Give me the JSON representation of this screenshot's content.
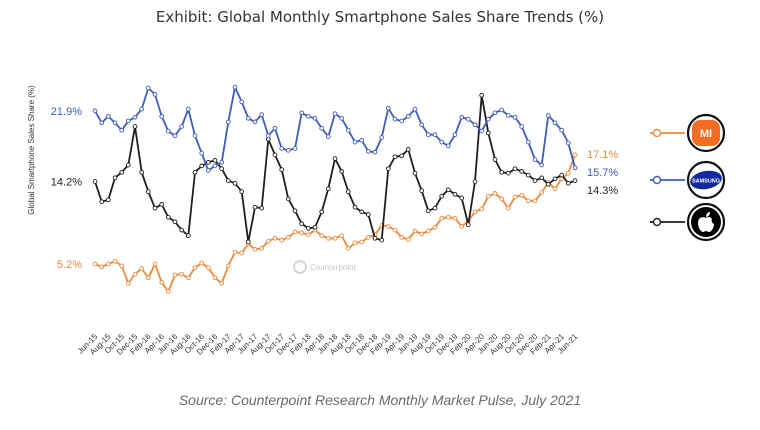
{
  "chart_data": {
    "type": "line",
    "title": "Exhibit: Global Monthly Smartphone Sales Share Trends (%)",
    "ylabel": "Global Smartphone Sales Share (%)",
    "xlabel": "",
    "ylim": [
      -2,
      28
    ],
    "grid": false,
    "x": [
      "Jun-15",
      "Jul-15",
      "Aug-15",
      "Sep-15",
      "Oct-15",
      "Nov-15",
      "Dec-15",
      "Jan-16",
      "Feb-16",
      "Mar-16",
      "Apr-16",
      "May-16",
      "Jun-16",
      "Jul-16",
      "Aug-16",
      "Sep-16",
      "Oct-16",
      "Nov-16",
      "Dec-16",
      "Jan-17",
      "Feb-17",
      "Mar-17",
      "Apr-17",
      "May-17",
      "Jun-17",
      "Jul-17",
      "Aug-17",
      "Sep-17",
      "Oct-17",
      "Nov-17",
      "Dec-17",
      "Jan-18",
      "Feb-18",
      "Mar-18",
      "Apr-18",
      "May-18",
      "Jun-18",
      "Jul-18",
      "Aug-18",
      "Sep-18",
      "Oct-18",
      "Nov-18",
      "Dec-18",
      "Jan-19",
      "Feb-19",
      "Mar-19",
      "Apr-19",
      "May-19",
      "Jun-19",
      "Jul-19",
      "Aug-19",
      "Sep-19",
      "Oct-19",
      "Nov-19",
      "Dec-19",
      "Jan-20",
      "Feb-20",
      "Mar-20",
      "Apr-20",
      "May-20",
      "Jun-20",
      "Jul-20",
      "Aug-20",
      "Sep-20",
      "Oct-20",
      "Nov-20",
      "Dec-20",
      "Jan-21",
      "Feb-21",
      "Mar-21",
      "Apr-21",
      "May-21",
      "Jun-21"
    ],
    "tick_labels": [
      "Jun-15",
      "Aug-15",
      "Oct-15",
      "Dec-15",
      "Feb-16",
      "Apr-16",
      "Jun-16",
      "Aug-16",
      "Oct-16",
      "Dec-16",
      "Feb-17",
      "Apr-17",
      "Jun-17",
      "Aug-17",
      "Oct-17",
      "Dec-17",
      "Feb-18",
      "Apr-18",
      "Jun-18",
      "Aug-18",
      "Oct-18",
      "Dec-18",
      "Feb-19",
      "Apr-19",
      "Jun-19",
      "Aug-19",
      "Oct-19",
      "Dec-19",
      "Feb-20",
      "Apr-20",
      "Jun-20",
      "Aug-20",
      "Oct-20",
      "Dec-20",
      "Feb-21",
      "Apr-21",
      "Jun-21"
    ],
    "series": [
      {
        "key": "samsung",
        "color": "#3f5cb8",
        "end_label": "15.7%",
        "start_label": "21.9%",
        "values": [
          21.9,
          20.6,
          21.3,
          20.6,
          19.8,
          20.8,
          21.2,
          22.1,
          24.4,
          23.7,
          21.3,
          19.7,
          19.2,
          20.2,
          22.1,
          19.2,
          17.3,
          15.4,
          15.9,
          16.3,
          20.7,
          24.5,
          22.9,
          21.1,
          20.7,
          21.5,
          19.2,
          20.0,
          17.8,
          17.6,
          17.8,
          21.7,
          21.3,
          21.1,
          20.0,
          19.1,
          21.6,
          21.1,
          19.8,
          18.5,
          18.7,
          17.5,
          17.4,
          19.0,
          22.2,
          21.0,
          20.8,
          21.3,
          22.1,
          20.4,
          19.3,
          19.3,
          18.5,
          18.1,
          19.3,
          21.2,
          21.0,
          20.4,
          19.7,
          21.0,
          21.7,
          22.0,
          21.4,
          21.2,
          20.2,
          18.5,
          16.6,
          16.0,
          21.4,
          20.6,
          19.8,
          18.4,
          15.7
        ]
      },
      {
        "key": "apple",
        "color": "#1f1f1f",
        "end_label": "14.3%",
        "start_label": "14.2%",
        "values": [
          14.2,
          12.0,
          12.2,
          14.6,
          15.2,
          16.0,
          20.2,
          15.2,
          13.1,
          11.3,
          11.7,
          10.3,
          9.8,
          8.9,
          8.3,
          15.2,
          15.9,
          16.3,
          16.5,
          15.6,
          14.3,
          14.0,
          13.1,
          7.6,
          11.4,
          11.3,
          18.8,
          17.1,
          15.5,
          12.3,
          11.0,
          9.6,
          9.1,
          9.2,
          10.9,
          13.4,
          16.7,
          15.3,
          13.1,
          11.4,
          10.9,
          10.6,
          8.0,
          7.8,
          15.6,
          16.9,
          17.0,
          17.7,
          15.1,
          13.2,
          11.0,
          11.3,
          12.6,
          13.3,
          12.8,
          12.4,
          9.5,
          14.2,
          23.6,
          19.5,
          16.6,
          15.2,
          15.1,
          15.6,
          15.3,
          14.9,
          14.3,
          14.6,
          13.9,
          14.5,
          14.9,
          14.0,
          14.3
        ]
      },
      {
        "key": "xiaomi",
        "color": "#ee8a3d",
        "end_label": "17.1%",
        "start_label": "5.2%",
        "values": [
          5.2,
          4.9,
          5.2,
          5.5,
          5.0,
          3.1,
          4.1,
          4.7,
          3.7,
          5.2,
          3.2,
          2.2,
          4.0,
          4.1,
          3.7,
          4.8,
          5.3,
          4.8,
          3.7,
          3.1,
          5.0,
          6.5,
          6.4,
          7.4,
          6.8,
          6.9,
          7.7,
          8.0,
          7.8,
          8.1,
          8.7,
          8.6,
          8.4,
          8.9,
          8.3,
          8.0,
          8.0,
          8.3,
          6.9,
          7.5,
          7.6,
          8.1,
          8.4,
          9.4,
          9.3,
          8.9,
          8.1,
          7.9,
          8.8,
          8.5,
          8.8,
          9.2,
          10.2,
          10.3,
          10.2,
          9.3,
          9.9,
          10.9,
          11.2,
          12.6,
          12.9,
          12.3,
          11.3,
          12.5,
          12.7,
          12.1,
          12.1,
          13.0,
          14.1,
          13.4,
          14.5,
          15.1,
          17.1
        ]
      }
    ],
    "legend": [
      {
        "key": "xiaomi",
        "logo_text": "MI",
        "color": "#ee8a3d"
      },
      {
        "key": "samsung",
        "logo_text": "SAMSUNG",
        "color": "#3f5cb8"
      },
      {
        "key": "apple",
        "logo_text": "",
        "color": "#1f1f1f"
      }
    ],
    "legend_position": "right",
    "watermark": "Counterpoint"
  },
  "source": "Source: Counterpoint Research Monthly Market Pulse, July 2021"
}
